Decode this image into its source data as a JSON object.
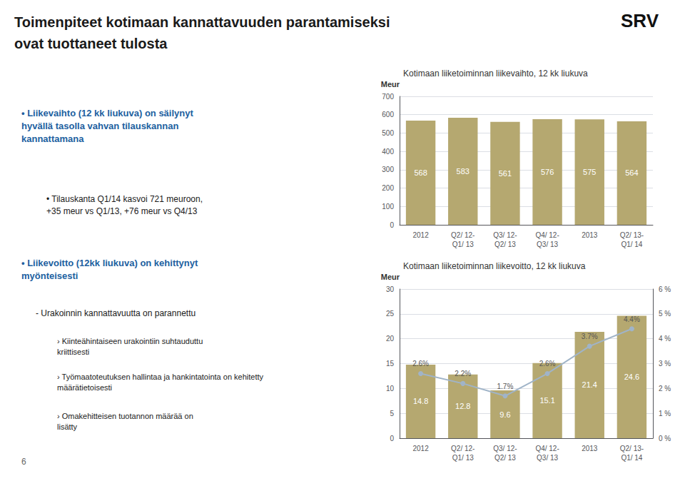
{
  "title": "Toimenpiteet kotimaan kannattavuuden parantamiseksi\novat tuottaneet tulosta",
  "annotations": [
    "• Liikevaihto (12 kk liukuva) on säilynyt\nhyvällä tasolla vahvan tilauskannan\nkannattamana",
    "• Tilauskanta Q1/14 kasvoi 721 meuroon,\n+35 meur vs Q1/13, +76 meur vs Q4/13",
    "• Liikevoitto (12kk liukuva) on kehittynyt\nmyönteisesti",
    "- Urakoinnin kannattavuutta on parannettu",
    "› Kiinteähintaiseen urakointiin suhtauduttu\nkriittisesti",
    "› Työmaatoteutuksen hallintaa ja hankintatointa on kehitetty\nmäärätietoisesti",
    "› Omakehitteisen tuotannon määrää on\nlisätty",
    "6",
    "SRV"
  ],
  "chart_data": [
    {
      "type": "bar",
      "title": "Kotimaan liiketoiminnan liikevaihto, 12 kk liukuva",
      "ylabel": "Meur",
      "categories": [
        "2012",
        "Q2/ 12-\nQ1/ 13",
        "Q3/ 12-\nQ2/ 13",
        "Q4/ 12-\nQ3/ 13",
        "2013",
        "Q2/ 13-\nQ1/ 14"
      ],
      "values": [
        568,
        583,
        561,
        576,
        575,
        564
      ],
      "color": "#b5a870",
      "ylim": [
        0,
        700
      ],
      "yticks": [
        0,
        100,
        200,
        300,
        400,
        500,
        600,
        700
      ],
      "grid": true,
      "data_labels": true
    },
    {
      "type": "bar",
      "title": "Kotimaan liiketoiminnan liikevoitto, 12 kk liukuva",
      "ylabel": "Meur",
      "categories": [
        "2012",
        "Q2/ 12-\nQ1/ 13",
        "Q3/ 12-\nQ2/ 13",
        "Q4/ 12-\nQ3/ 13",
        "2013",
        "Q2/ 13-\nQ1/ 14"
      ],
      "series": [
        {
          "type": "bar",
          "color": "#b5a870",
          "values": [
            14.8,
            12.8,
            9.6,
            15.1,
            21.4,
            24.6
          ],
          "data_labels": true
        },
        {
          "type": "line",
          "axis": "y2",
          "color": "#a0b4c8",
          "marker": "circle",
          "values": [
            2.6,
            2.2,
            1.7,
            2.6,
            3.7,
            4.4
          ],
          "value_labels": [
            "2.6%",
            "2.2%",
            "1.7%",
            "2.6%",
            "3.7%",
            "4.4%"
          ],
          "data_labels": true
        }
      ],
      "ylim": [
        0,
        30
      ],
      "yticks": [
        0,
        5,
        10,
        15,
        20,
        25,
        30
      ],
      "y2lim": [
        0,
        6
      ],
      "y2ticks": [
        {
          "value": 0,
          "label": "0 %"
        },
        {
          "value": 1,
          "label": "1 %"
        },
        {
          "value": 2,
          "label": "2 %"
        },
        {
          "value": 3,
          "label": "3 %"
        },
        {
          "value": 4,
          "label": "4 %"
        },
        {
          "value": 5,
          "label": "5 %"
        },
        {
          "value": 6,
          "label": "6 %"
        }
      ],
      "grid": true
    }
  ]
}
